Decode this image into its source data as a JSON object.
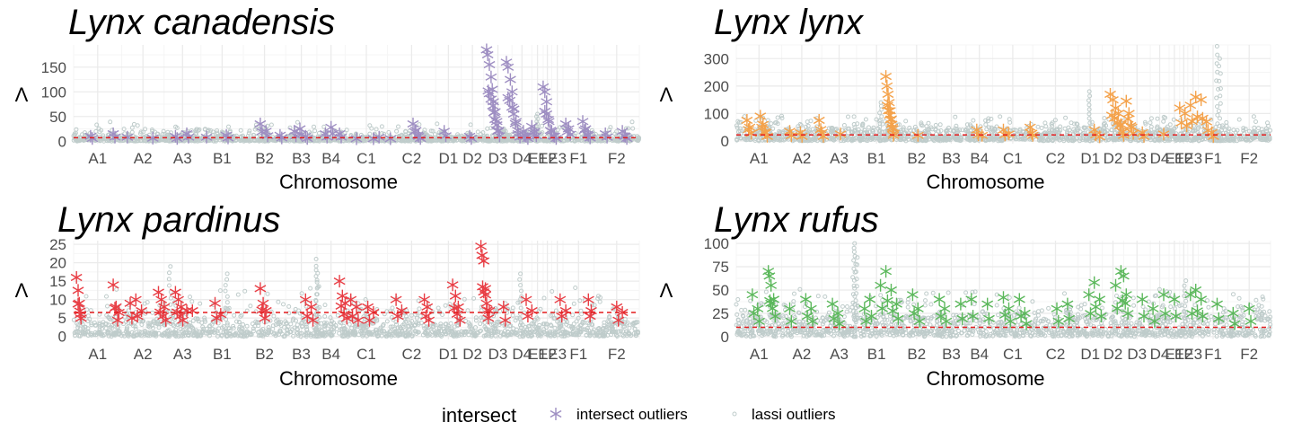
{
  "colors": {
    "lassi": "#bfcccb",
    "threshold": "#e31a1c",
    "grid_major": "#ebebeb",
    "grid_minor": "#f5f5f5",
    "legend_intersect": "#9e8ec2"
  },
  "legend": {
    "title": "intersect",
    "items": [
      {
        "label": "intersect outliers",
        "icon": "asterisk-icon"
      },
      {
        "label": "lassi outliers",
        "icon": "circle-icon"
      }
    ]
  },
  "chart_data": [
    {
      "type": "scatter",
      "title": "Lynx canadensis",
      "xlabel": "Chromosome",
      "ylabel": "Λ",
      "color": "#9e8ec2",
      "ylim": [
        -5,
        195
      ],
      "yticks": [
        0,
        50,
        100,
        150
      ],
      "threshold": 7,
      "categories": [
        "A1",
        "A2",
        "A3",
        "B1",
        "B2",
        "B3",
        "B4",
        "C1",
        "C2",
        "D1",
        "D2",
        "D3",
        "D4",
        "E1",
        "E2",
        "E3",
        "F1",
        "F2"
      ],
      "chrom_starts": [
        0,
        0.085,
        0.16,
        0.225,
        0.3,
        0.375,
        0.43,
        0.48,
        0.555,
        0.64,
        0.685,
        0.725,
        0.775,
        0.81,
        0.83,
        0.845,
        0.865,
        0.92,
        1.0
      ],
      "lassi_base": 8,
      "lassi_max": 40,
      "lassi_spikes": [
        [
          0.76,
          25
        ],
        [
          0.82,
          55
        ]
      ],
      "intersect": [
        [
          0.03,
          10
        ],
        [
          0.07,
          15
        ],
        [
          0.095,
          8
        ],
        [
          0.14,
          6
        ],
        [
          0.18,
          10
        ],
        [
          0.2,
          15
        ],
        [
          0.235,
          8
        ],
        [
          0.27,
          12
        ],
        [
          0.33,
          35
        ],
        [
          0.34,
          20
        ],
        [
          0.365,
          12
        ],
        [
          0.39,
          20
        ],
        [
          0.4,
          25
        ],
        [
          0.41,
          10
        ],
        [
          0.445,
          15
        ],
        [
          0.455,
          28
        ],
        [
          0.47,
          15
        ],
        [
          0.5,
          5
        ],
        [
          0.53,
          5
        ],
        [
          0.54,
          8
        ],
        [
          0.56,
          5
        ],
        [
          0.6,
          35
        ],
        [
          0.605,
          22
        ],
        [
          0.61,
          10
        ],
        [
          0.655,
          20
        ],
        [
          0.7,
          10
        ],
        [
          0.73,
          185
        ],
        [
          0.732,
          175
        ],
        [
          0.735,
          155
        ],
        [
          0.738,
          130
        ],
        [
          0.74,
          105
        ],
        [
          0.742,
          80
        ],
        [
          0.745,
          60
        ],
        [
          0.748,
          40
        ],
        [
          0.75,
          20
        ],
        [
          0.765,
          160
        ],
        [
          0.768,
          150
        ],
        [
          0.772,
          125
        ],
        [
          0.775,
          100
        ],
        [
          0.778,
          65
        ],
        [
          0.782,
          40
        ],
        [
          0.786,
          15
        ],
        [
          0.795,
          20
        ],
        [
          0.8,
          10
        ],
        [
          0.81,
          30
        ],
        [
          0.815,
          20
        ],
        [
          0.83,
          110
        ],
        [
          0.833,
          100
        ],
        [
          0.836,
          80
        ],
        [
          0.84,
          40
        ],
        [
          0.845,
          20
        ],
        [
          0.85,
          10
        ],
        [
          0.87,
          35
        ],
        [
          0.875,
          25
        ],
        [
          0.9,
          40
        ],
        [
          0.905,
          25
        ],
        [
          0.91,
          12
        ],
        [
          0.94,
          15
        ],
        [
          0.97,
          20
        ],
        [
          0.975,
          10
        ]
      ]
    },
    {
      "type": "scatter",
      "title": "Lynx lynx",
      "xlabel": "Chromosome",
      "ylabel": "Λ",
      "color": "#f4a24b",
      "ylim": [
        -10,
        350
      ],
      "yticks": [
        0,
        100,
        200,
        300
      ],
      "threshold": 22,
      "categories": [
        "A1",
        "A2",
        "A3",
        "B1",
        "B2",
        "B3",
        "B4",
        "C1",
        "C2",
        "D1",
        "D2",
        "D3",
        "D4",
        "E1",
        "E2",
        "E3",
        "F1",
        "F2"
      ],
      "chrom_starts": [
        0,
        0.085,
        0.16,
        0.225,
        0.3,
        0.375,
        0.43,
        0.48,
        0.555,
        0.64,
        0.685,
        0.725,
        0.775,
        0.81,
        0.83,
        0.845,
        0.865,
        0.92,
        1.0
      ],
      "lassi_base": 40,
      "lassi_max": 100,
      "lassi_spikes": [
        [
          0.27,
          140
        ],
        [
          0.66,
          180
        ],
        [
          0.9,
          345
        ],
        [
          0.905,
          300
        ]
      ],
      "intersect": [
        [
          0.02,
          75
        ],
        [
          0.025,
          50
        ],
        [
          0.045,
          90
        ],
        [
          0.05,
          60
        ],
        [
          0.055,
          30
        ],
        [
          0.1,
          35
        ],
        [
          0.12,
          30
        ],
        [
          0.155,
          75
        ],
        [
          0.16,
          30
        ],
        [
          0.195,
          25
        ],
        [
          0.28,
          235
        ],
        [
          0.282,
          200
        ],
        [
          0.284,
          170
        ],
        [
          0.286,
          140
        ],
        [
          0.288,
          110
        ],
        [
          0.29,
          80
        ],
        [
          0.292,
          50
        ],
        [
          0.294,
          20
        ],
        [
          0.34,
          20
        ],
        [
          0.45,
          40
        ],
        [
          0.46,
          20
        ],
        [
          0.5,
          40
        ],
        [
          0.51,
          25
        ],
        [
          0.55,
          50
        ],
        [
          0.555,
          20
        ],
        [
          0.67,
          40
        ],
        [
          0.68,
          15
        ],
        [
          0.7,
          170
        ],
        [
          0.705,
          150
        ],
        [
          0.71,
          120
        ],
        [
          0.715,
          100
        ],
        [
          0.72,
          60
        ],
        [
          0.725,
          20
        ],
        [
          0.73,
          145
        ],
        [
          0.735,
          100
        ],
        [
          0.74,
          50
        ],
        [
          0.76,
          30
        ],
        [
          0.8,
          25
        ],
        [
          0.83,
          120
        ],
        [
          0.84,
          100
        ],
        [
          0.85,
          130
        ],
        [
          0.86,
          160
        ],
        [
          0.87,
          150
        ],
        [
          0.88,
          70
        ],
        [
          0.89,
          30
        ]
      ]
    },
    {
      "type": "scatter",
      "title": "Lynx pardinus",
      "xlabel": "Chromosome",
      "ylabel": "Λ",
      "color": "#e83e45",
      "ylim": [
        -0.8,
        26
      ],
      "yticks": [
        0,
        5,
        10,
        15,
        20,
        25
      ],
      "threshold": 6.5,
      "categories": [
        "A1",
        "A2",
        "A3",
        "B1",
        "B2",
        "B3",
        "B4",
        "C1",
        "C2",
        "D1",
        "D2",
        "D3",
        "D4",
        "E1",
        "E2",
        "E3",
        "F1",
        "F2"
      ],
      "chrom_starts": [
        0,
        0.085,
        0.16,
        0.225,
        0.3,
        0.375,
        0.43,
        0.48,
        0.555,
        0.64,
        0.685,
        0.725,
        0.775,
        0.81,
        0.83,
        0.845,
        0.865,
        0.92,
        1.0
      ],
      "lassi_base": 4,
      "lassi_max": 14,
      "lassi_spikes": [
        [
          0.17,
          19
        ],
        [
          0.27,
          17
        ],
        [
          0.43,
          21
        ],
        [
          0.43,
          18
        ],
        [
          0.79,
          17
        ]
      ],
      "intersect": [
        [
          0.005,
          16
        ],
        [
          0.008,
          12.5
        ],
        [
          0.01,
          9
        ],
        [
          0.012,
          6
        ],
        [
          0.07,
          14
        ],
        [
          0.075,
          8
        ],
        [
          0.08,
          6.5
        ],
        [
          0.1,
          9
        ],
        [
          0.11,
          10
        ],
        [
          0.12,
          7
        ],
        [
          0.15,
          12
        ],
        [
          0.155,
          10
        ],
        [
          0.16,
          8
        ],
        [
          0.18,
          12
        ],
        [
          0.185,
          10
        ],
        [
          0.19,
          8
        ],
        [
          0.2,
          7
        ],
        [
          0.21,
          7
        ],
        [
          0.25,
          9
        ],
        [
          0.26,
          6
        ],
        [
          0.33,
          13
        ],
        [
          0.335,
          9
        ],
        [
          0.34,
          7
        ],
        [
          0.41,
          10
        ],
        [
          0.42,
          8
        ],
        [
          0.47,
          15
        ],
        [
          0.475,
          11
        ],
        [
          0.48,
          9
        ],
        [
          0.49,
          10
        ],
        [
          0.5,
          8
        ],
        [
          0.52,
          8
        ],
        [
          0.53,
          6.5
        ],
        [
          0.57,
          10
        ],
        [
          0.58,
          7
        ],
        [
          0.62,
          10
        ],
        [
          0.625,
          8
        ],
        [
          0.67,
          14
        ],
        [
          0.675,
          11
        ],
        [
          0.68,
          8
        ],
        [
          0.72,
          24.5
        ],
        [
          0.722,
          22
        ],
        [
          0.725,
          20.5
        ],
        [
          0.728,
          13
        ],
        [
          0.73,
          9
        ],
        [
          0.735,
          7
        ],
        [
          0.76,
          8
        ],
        [
          0.8,
          10
        ],
        [
          0.81,
          7
        ],
        [
          0.86,
          10
        ],
        [
          0.87,
          7
        ],
        [
          0.91,
          10
        ],
        [
          0.915,
          7
        ],
        [
          0.96,
          8
        ],
        [
          0.97,
          6.5
        ]
      ]
    },
    {
      "type": "scatter",
      "title": "Lynx rufus",
      "xlabel": "Chromosome",
      "ylabel": "Λ",
      "color": "#5cb85c",
      "ylim": [
        -3,
        103
      ],
      "yticks": [
        0,
        25,
        50,
        75,
        100
      ],
      "threshold": 10,
      "categories": [
        "A1",
        "A2",
        "A3",
        "B1",
        "B2",
        "B3",
        "B4",
        "C1",
        "C2",
        "D1",
        "D2",
        "D3",
        "D4",
        "E1",
        "E2",
        "E3",
        "F1",
        "F2"
      ],
      "chrom_starts": [
        0,
        0.085,
        0.16,
        0.225,
        0.3,
        0.375,
        0.43,
        0.48,
        0.555,
        0.64,
        0.685,
        0.725,
        0.775,
        0.81,
        0.83,
        0.845,
        0.865,
        0.92,
        1.0
      ],
      "lassi_base": 22,
      "lassi_max": 55,
      "lassi_spikes": [
        [
          0.22,
          100
        ],
        [
          0.222,
          95
        ],
        [
          0.225,
          85
        ],
        [
          0.84,
          60
        ]
      ],
      "intersect": [
        [
          0.03,
          45
        ],
        [
          0.04,
          30
        ],
        [
          0.06,
          70
        ],
        [
          0.062,
          65
        ],
        [
          0.065,
          55
        ],
        [
          0.07,
          40
        ],
        [
          0.1,
          30
        ],
        [
          0.13,
          40
        ],
        [
          0.14,
          30
        ],
        [
          0.18,
          35
        ],
        [
          0.19,
          25
        ],
        [
          0.24,
          30
        ],
        [
          0.25,
          40
        ],
        [
          0.27,
          55
        ],
        [
          0.28,
          70
        ],
        [
          0.29,
          50
        ],
        [
          0.3,
          35
        ],
        [
          0.33,
          45
        ],
        [
          0.34,
          30
        ],
        [
          0.38,
          40
        ],
        [
          0.39,
          30
        ],
        [
          0.42,
          35
        ],
        [
          0.44,
          40
        ],
        [
          0.47,
          35
        ],
        [
          0.5,
          42
        ],
        [
          0.51,
          30
        ],
        [
          0.53,
          40
        ],
        [
          0.54,
          25
        ],
        [
          0.6,
          30
        ],
        [
          0.62,
          35
        ],
        [
          0.66,
          45
        ],
        [
          0.67,
          58
        ],
        [
          0.68,
          40
        ],
        [
          0.71,
          55
        ],
        [
          0.72,
          70
        ],
        [
          0.725,
          65
        ],
        [
          0.73,
          45
        ],
        [
          0.76,
          40
        ],
        [
          0.78,
          30
        ],
        [
          0.8,
          45
        ],
        [
          0.82,
          40
        ],
        [
          0.85,
          45
        ],
        [
          0.86,
          50
        ],
        [
          0.87,
          40
        ],
        [
          0.9,
          35
        ],
        [
          0.93,
          25
        ],
        [
          0.96,
          30
        ]
      ]
    }
  ]
}
